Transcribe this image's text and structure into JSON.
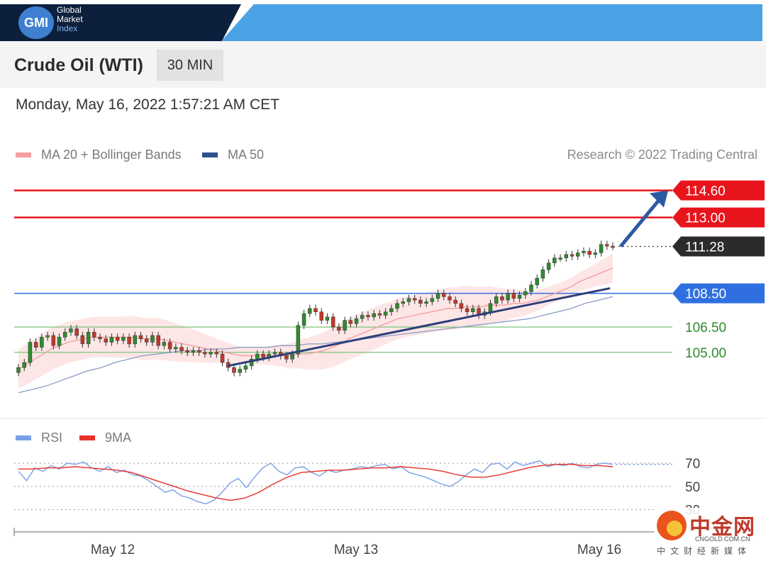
{
  "brand": {
    "logo_text": "GMI",
    "name_line1": "Global",
    "name_line2": "Market",
    "name_line3": "Index"
  },
  "header": {
    "instrument": "Crude Oil (WTI)",
    "timeframe": "30 MIN"
  },
  "datetime": "Monday, May 16, 2022 1:57:21 AM CET",
  "legend": {
    "ma20": "MA 20 + Bollinger Bands",
    "ma50": "MA 50",
    "credit": "Research © 2022 Trading Central"
  },
  "colors": {
    "ma20": "#f4a0a0",
    "ma50": "#2c4f8f",
    "resistance": "#e8141c",
    "support_primary": "#2f6fe0",
    "support_secondary": "#7cc47a",
    "current": "#333333",
    "candle_up": "#2e8b2e",
    "candle_down": "#c0392b",
    "rsi": "#7a9fe6",
    "rsi_ma": "#e8302c"
  },
  "watermark": {
    "cn": "中金网",
    "url": "CNGOLD.COM.CN",
    "sub": "中文财经新媒体"
  },
  "chart_data": [
    {
      "type": "candlestick",
      "title": "Crude Oil (WTI)",
      "x_ticks": [
        "May 12",
        "May 13",
        "May 16"
      ],
      "ylim": [
        101.5,
        115.8
      ],
      "levels": [
        {
          "label": "114.60",
          "value": 114.6,
          "kind": "resistance"
        },
        {
          "label": "113.00",
          "value": 113.0,
          "kind": "resistance"
        },
        {
          "label": "111.28",
          "value": 111.28,
          "kind": "current"
        },
        {
          "label": "108.50",
          "value": 108.5,
          "kind": "support_primary"
        },
        {
          "label": "106.50",
          "value": 106.5,
          "kind": "support_secondary"
        },
        {
          "label": "105.00",
          "value": 105.0,
          "kind": "support_secondary"
        }
      ],
      "closes": [
        104.1,
        104.4,
        105.6,
        105.3,
        105.9,
        106.0,
        105.4,
        105.9,
        106.2,
        106.4,
        106.0,
        105.5,
        106.2,
        105.9,
        105.8,
        105.6,
        105.9,
        105.7,
        105.9,
        105.5,
        106.0,
        105.8,
        105.6,
        106.0,
        105.4,
        105.6,
        105.2,
        105.3,
        105.1,
        105.0,
        105.1,
        105.0,
        104.9,
        105.0,
        104.9,
        104.4,
        104.1,
        103.8,
        104.0,
        104.2,
        104.6,
        104.9,
        104.7,
        104.9,
        105.0,
        104.8,
        104.6,
        104.9,
        106.6,
        107.3,
        107.6,
        107.4,
        106.9,
        107.1,
        106.5,
        106.3,
        106.9,
        106.7,
        107.0,
        107.2,
        107.1,
        107.3,
        107.2,
        107.4,
        107.6,
        107.9,
        108.0,
        108.2,
        108.1,
        107.9,
        108.0,
        108.2,
        108.5,
        108.3,
        108.1,
        107.9,
        107.6,
        107.4,
        107.6,
        107.2,
        107.4,
        107.9,
        108.3,
        108.1,
        108.5,
        108.2,
        108.4,
        108.6,
        109.0,
        109.4,
        109.9,
        110.3,
        110.6,
        110.6,
        110.8,
        110.7,
        110.9,
        111.0,
        110.8,
        110.9,
        111.4,
        111.3,
        111.28
      ],
      "ma20": [
        104.0,
        104.3,
        104.6,
        104.9,
        105.2,
        105.4,
        105.6,
        105.7,
        105.8,
        105.9,
        105.9,
        105.9,
        105.9,
        105.9,
        105.9,
        105.8,
        105.8,
        105.8,
        105.7,
        105.6,
        105.5,
        105.4,
        105.3,
        105.2,
        105.1,
        105.0,
        104.9,
        104.8,
        104.8,
        104.8,
        104.8,
        104.8,
        104.8,
        104.8,
        104.9,
        104.9,
        105.0,
        105.1,
        105.3,
        105.5,
        105.8,
        106.0,
        106.2,
        106.4,
        106.6,
        106.8,
        107.0,
        107.1,
        107.2,
        107.3,
        107.4,
        107.5,
        107.6,
        107.6,
        107.7,
        107.7,
        107.7,
        107.8,
        107.8,
        107.8,
        107.9,
        107.9,
        108.0,
        108.1,
        108.3,
        108.5,
        108.7,
        108.9,
        109.2,
        109.4,
        109.6,
        109.8,
        110.0
      ],
      "ma50": [
        102.6,
        102.8,
        103.0,
        103.3,
        103.6,
        103.9,
        104.1,
        104.4,
        104.6,
        104.8,
        104.9,
        105.0,
        105.1,
        105.1,
        105.2,
        105.2,
        105.3,
        105.3,
        105.3,
        105.4,
        105.4,
        105.5,
        105.5,
        105.6,
        105.7,
        105.8,
        105.9,
        106.0,
        106.1,
        106.2,
        106.3,
        106.4,
        106.5,
        106.6,
        106.7,
        106.8,
        106.9,
        107.0,
        107.2,
        107.4,
        107.6,
        107.9,
        108.1,
        108.3
      ],
      "trendline": {
        "from": [
          104.2
        ],
        "to": [
          108.8
        ]
      },
      "forecast_target": 114.6
    },
    {
      "type": "line",
      "title": "RSI",
      "series": [
        {
          "name": "RSI",
          "values": [
            63,
            55,
            66,
            63,
            68,
            65,
            70,
            69,
            71,
            66,
            63,
            67,
            62,
            64,
            60,
            59,
            55,
            50,
            45,
            47,
            42,
            40,
            37,
            35,
            38,
            45,
            53,
            57,
            49,
            58,
            66,
            70,
            63,
            60,
            66,
            67,
            62,
            59,
            64,
            62,
            64,
            65,
            67,
            66,
            68,
            69,
            65,
            67,
            62,
            60,
            58,
            55,
            52,
            50,
            54,
            60,
            65,
            62,
            69,
            70,
            65,
            71,
            68,
            70,
            72,
            67,
            69,
            68,
            70,
            67,
            66,
            69,
            70,
            69
          ]
        },
        {
          "name": "9MA",
          "values": [
            65,
            65,
            66,
            66,
            67,
            66,
            65,
            64,
            62,
            58,
            54,
            50,
            46,
            43,
            40,
            38,
            40,
            45,
            52,
            58,
            62,
            63,
            64,
            64,
            65,
            66,
            66,
            67,
            66,
            65,
            63,
            60,
            58,
            58,
            60,
            63,
            66,
            68,
            69,
            69,
            68,
            68,
            67
          ]
        }
      ],
      "y_ticks": [
        "70",
        "50",
        "30"
      ],
      "ylim": [
        20,
        78
      ]
    }
  ]
}
